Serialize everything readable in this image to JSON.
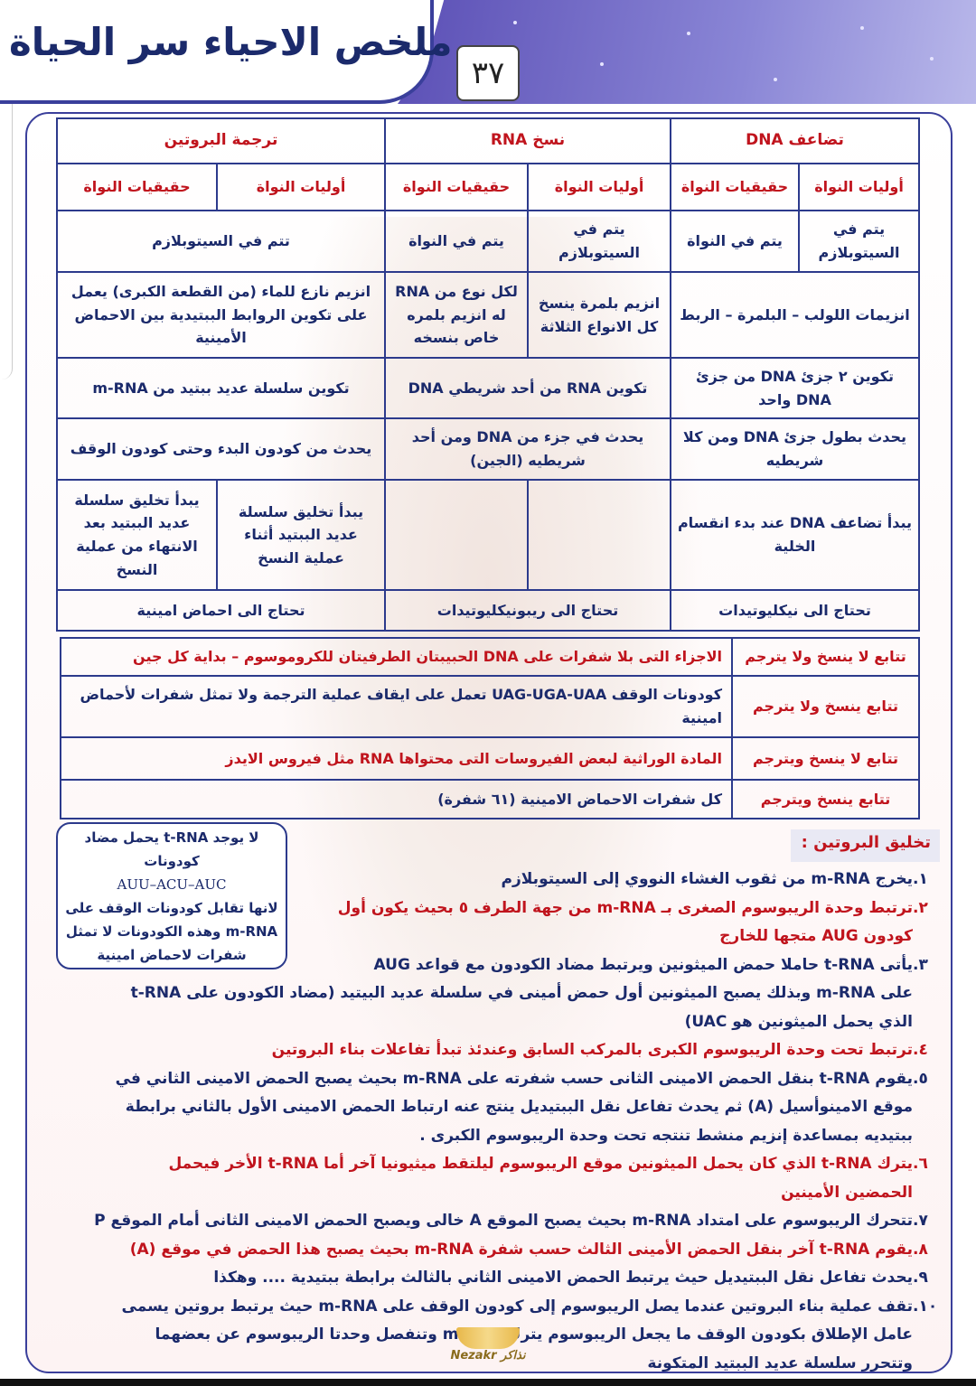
{
  "header": {
    "title": "ملخص الاحياء سر الحياة",
    "page_number": "٣٧"
  },
  "table1": {
    "groups": [
      "تضاعف DNA",
      "نسخ RNA",
      "ترجمة البروتين"
    ],
    "sub": [
      "أوليات النواة",
      "حقيقيات النواة",
      "أوليات النواة",
      "حقيقيات النواة",
      "أوليات النواة",
      "حقيقيات النواة"
    ],
    "location": [
      "يتم في السيتوبلازم",
      "يتم في النواة",
      "يتم في السيتوبلازم",
      "يتم في النواة",
      "تتم في السيتوبلازم"
    ],
    "enzymes": [
      "انزيمات اللولب – البلمرة – الربط",
      "انزيم بلمرة ينسخ كل الانواع الثلاثة",
      "لكل نوع من RNA له انزيم بلمره خاص بنسخه",
      "انزيم نازع للماء (من القطعة الكبرى) يعمل على تكوين الروابط الببتيدية بين الاحماض الأمينية"
    ],
    "product": [
      "تكوين ٢ جزئ DNA من جزئ DNA واحد",
      "تكوين RNA من أحد شريطي DNA",
      "تكوين سلسلة عديد ببتيد من m-RNA"
    ],
    "extent": [
      "يحدث بطول جزئ DNA ومن كلا شريطيه",
      "يحدث في جزء من DNA ومن أحد شريطيه (الجين)",
      "يحدث من كودون البدء وحتى كودون الوقف"
    ],
    "start": [
      "يبدأ تضاعف DNA عند بدء انقسام الخلية",
      "",
      "",
      "يبدأ تخليق سلسلة عديد الببتيد أثناء عملية النسخ",
      "يبدأ تخليق سلسلة عديد الببتيد بعد الانتهاء من عملية النسخ"
    ],
    "needs": [
      "تحتاج الى نيكليوتيدات",
      "تحتاج الى ريبونيكليوتيدات",
      "تحتاج الى احماض امينية"
    ]
  },
  "table2": [
    {
      "k": "تتابع لا ينسخ ولا يترجم",
      "v": "الاجزاء التى بلا شفرات على DNA الحبيبتان الطرفيتان للكروموسوم – بداية كل جين"
    },
    {
      "k": "تتابع ينسخ ولا يترجم",
      "v": "كودونات الوقف UAG-UGA-UAA تعمل على ايقاف عملية الترجمة ولا تمثل شفرات لأحماض امينية"
    },
    {
      "k": "تتابع لا ينسخ ويترجم",
      "v": "المادة الوراثية لبعض الفيروسات التى محتواها RNA مثل فيروس الايدز"
    },
    {
      "k": "تتابع ينسخ ويترجم",
      "v": "كل شفرات الاحماض الامينية (٦١ شفرة)"
    }
  ],
  "note": {
    "l1": "لا يوجد t-RNA يحمل مضاد كودونات",
    "l2": "AUU–ACU–AUC",
    "l3": "لانها تقابل كودونات الوقف على m-RNA وهذه الكودونات لا تمثل شفرات لاحماض امينية"
  },
  "section": {
    "title": "تخليق البروتين :"
  },
  "steps": [
    {
      "n": "١.",
      "lines": [
        "يخرج m-RNA من ثقوب الغشاء النووي إلى السيتوبلازم"
      ]
    },
    {
      "n": "٢.",
      "lines": [
        "ترتبط وحدة الريبوسوم الصغرى بـ m-RNA من جهة الطرف ٥ بحيث يكون أول",
        "كودون AUG متجها للخارج"
      ]
    },
    {
      "n": "٣.",
      "lines": [
        "يأتى t-RNA حاملا حمض الميثونين ويرتبط مضاد الكودون مع قواعد AUG",
        "على m-RNA وبذلك يصبح الميثونين أول حمض أمينى في سلسلة عديد البيتيد (مضاد الكودون على t-RNA",
        "الذي يحمل الميثونين هو UAC)"
      ]
    },
    {
      "n": "٤.",
      "lines": [
        "ترتبط تحت وحدة الريبوسوم الكبرى بالمركب السابق وعندئذ تبدأ تفاعلات بناء البروتين"
      ]
    },
    {
      "n": "٥.",
      "lines": [
        "يقوم t-RNA بنقل الحمض الامينى الثانى حسب شفرته على m-RNA بحيث يصبح الحمض الامينى الثاني في",
        "موقع الامينوأسيل (A) ثم يحدث تفاعل نقل الببتيديل ينتج عنه ارتباط الحمض الامينى الأول بالثاني برابطة",
        "ببتيديه بمساعدة إنزيم منشط تنتجه تحت وحدة الريبوسوم الكبرى ."
      ]
    },
    {
      "n": "٦.",
      "lines": [
        "يترك t-RNA الذي كان يحمل الميثونين موقع الريبوسوم ليلتقط ميثيونيا آخر أما t-RNA الأخر فيحمل",
        "الحمضين الأمينين"
      ]
    },
    {
      "n": "٧.",
      "lines": [
        "تتحرك الريبوسوم على امتداد m-RNA بحيث يصبح الموقع A خالى ويصبح الحمض الامينى الثانى أمام الموقع P"
      ]
    },
    {
      "n": "٨.",
      "lines": [
        "يقوم t-RNA آخر بنقل الحمض الأمينى الثالث حسب شفرة m-RNA بحيث يصبح هذا الحمض في موقع (A)"
      ]
    },
    {
      "n": "٩.",
      "lines": [
        "يحدث تفاعل نقل الببتيديل حيث يرتبط الحمض الامينى الثاني بالثالث برابطة ببتيدية .... وهكذا"
      ]
    },
    {
      "n": "١٠.",
      "lines": [
        "تقف عملية بناء البروتين عندما يصل الريبوسوم إلى كودون الوقف على m-RNA حيث يرتبط بروتين يسمى",
        "عامل الإطلاق بكودون الوقف ما يجعل الريبوسوم يترك m-RNA وتنفصل وحدتا الريبوسوم عن بعضهما",
        "وتتحرر سلسلة عديد الببتيد المتكونة"
      ]
    }
  ],
  "logo": {
    "text": "Nezakr نذاكر"
  },
  "colors": {
    "navy": "#1b2a6b",
    "red": "#c0141d",
    "border": "#2c3a8c",
    "header_purple": "#5b4fb5"
  }
}
